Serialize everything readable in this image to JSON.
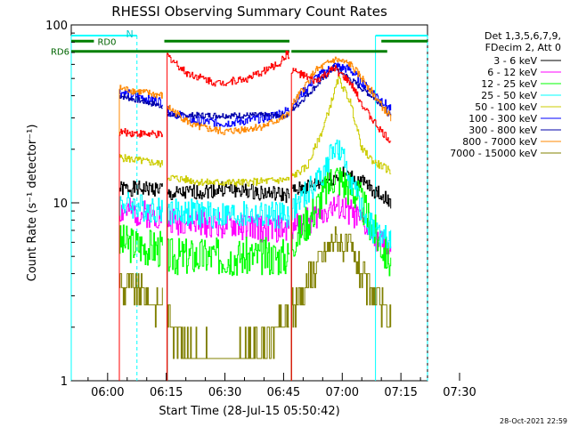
{
  "chart_data": {
    "type": "line",
    "title": "RHESSI Observing Summary Count Rates",
    "xlabel": "Start Time (28-Jul-15 05:50:42)",
    "ylabel": "Count Rate (s⁻¹ detector⁻¹)",
    "ylim": [
      1,
      100
    ],
    "yscale": "log",
    "xlim_minutes": [
      -9.3,
      81.8
    ],
    "x_ticks": [
      {
        "label": "06:00",
        "value": 0
      },
      {
        "label": "06:15",
        "value": 15
      },
      {
        "label": "06:30",
        "value": 30
      },
      {
        "label": "06:45",
        "value": 45
      },
      {
        "label": "07:00",
        "value": 60
      },
      {
        "label": "07:15",
        "value": 75
      },
      {
        "label": "07:30",
        "value": 90
      }
    ],
    "y_ticks": [
      {
        "label": "100",
        "value": 100
      },
      {
        "label": "10",
        "value": 10
      },
      {
        "label": "1",
        "value": 1
      }
    ],
    "legend_header": [
      "Det 1,3,5,6,7,9,",
      "FDecim 2, Att 0"
    ],
    "footer_stamp": "28-Oct-2021 22:59",
    "data_start_min": 3,
    "data_end_min": 72.5,
    "data_gaps": [
      [
        14,
        15
      ],
      [
        46.5,
        47
      ]
    ],
    "annotations": {
      "night_label": "N",
      "rd0_label": "RD0",
      "rd6_label": "RD6",
      "night_bars": [
        [
          -9.3,
          7.5
        ],
        [
          68.5,
          81.8
        ]
      ],
      "night_lines": [
        -9.3,
        7.5,
        68.5,
        81.8
      ],
      "rd0_value": 81,
      "rd0_bars": [
        [
          -9.3,
          -3.5
        ],
        [
          14.5,
          46.5
        ],
        [
          70,
          81.8
        ]
      ],
      "rd6_value": 71,
      "rd6_bars": [
        [
          -9.3,
          46.5
        ],
        [
          47,
          71.5
        ]
      ]
    },
    "series": [
      {
        "name": "3 - 6 keV",
        "color": "#000000",
        "noise": 0.1,
        "seed": 1,
        "points": [
          [
            3,
            12
          ],
          [
            14,
            12
          ],
          [
            15,
            11
          ],
          [
            30,
            12
          ],
          [
            46,
            11
          ],
          [
            47,
            11.5
          ],
          [
            55,
            13
          ],
          [
            60,
            14.5
          ],
          [
            65,
            13
          ],
          [
            70,
            11
          ],
          [
            72.5,
            10
          ]
        ]
      },
      {
        "name": "6 - 12 keV",
        "color": "#ff00ff",
        "noise": 0.18,
        "seed": 2,
        "points": [
          [
            3,
            9
          ],
          [
            14,
            8.5
          ],
          [
            15,
            8
          ],
          [
            30,
            7.5
          ],
          [
            46,
            7
          ],
          [
            47,
            7.5
          ],
          [
            52,
            8
          ],
          [
            57,
            9.5
          ],
          [
            62,
            9
          ],
          [
            67,
            7
          ],
          [
            70,
            6
          ],
          [
            72.5,
            5.5
          ]
        ]
      },
      {
        "name": "12 - 25 keV",
        "color": "#00ff00",
        "noise": 0.25,
        "seed": 3,
        "points": [
          [
            3,
            6
          ],
          [
            14,
            5.5
          ],
          [
            15,
            5
          ],
          [
            30,
            5
          ],
          [
            46,
            5
          ],
          [
            47,
            6
          ],
          [
            52,
            8.5
          ],
          [
            58,
            14.5
          ],
          [
            64,
            11
          ],
          [
            68,
            7
          ],
          [
            72.5,
            4.5
          ]
        ]
      },
      {
        "name": "25 - 50 keV",
        "color": "#00ffff",
        "noise": 0.18,
        "seed": 4,
        "points": [
          [
            3,
            10
          ],
          [
            14,
            9
          ],
          [
            15,
            9
          ],
          [
            30,
            8.5
          ],
          [
            46,
            8.5
          ],
          [
            47,
            9
          ],
          [
            52,
            12
          ],
          [
            56,
            16
          ],
          [
            58,
            21
          ],
          [
            61,
            16
          ],
          [
            65,
            9
          ],
          [
            68,
            7
          ],
          [
            72.5,
            6
          ]
        ]
      },
      {
        "name": "50 - 100 keV",
        "color": "#cccc00",
        "noise": 0.05,
        "seed": 5,
        "points": [
          [
            3,
            18
          ],
          [
            14,
            16.5
          ],
          [
            15,
            14
          ],
          [
            25,
            13
          ],
          [
            35,
            13
          ],
          [
            46,
            13.5
          ],
          [
            47,
            14
          ],
          [
            51,
            16
          ],
          [
            55,
            26
          ],
          [
            59,
            50
          ],
          [
            62,
            37
          ],
          [
            65,
            20
          ],
          [
            68,
            17
          ],
          [
            72.5,
            15
          ]
        ]
      },
      {
        "name": "100 - 300 keV",
        "color": "#0000ff",
        "noise": 0.06,
        "seed": 6,
        "points": [
          [
            3,
            42
          ],
          [
            14,
            37
          ],
          [
            15,
            33
          ],
          [
            22,
            29
          ],
          [
            30,
            28
          ],
          [
            40,
            30
          ],
          [
            46,
            33
          ],
          [
            47,
            35
          ],
          [
            53,
            50
          ],
          [
            58,
            59
          ],
          [
            62,
            56
          ],
          [
            66,
            45
          ],
          [
            70,
            38
          ],
          [
            72.5,
            33
          ]
        ]
      },
      {
        "name": "300 - 800 keV",
        "color": "#0000aa",
        "noise": 0.04,
        "seed": 7,
        "points": [
          [
            3,
            40
          ],
          [
            14,
            35
          ],
          [
            15,
            31
          ],
          [
            46,
            31
          ],
          [
            47,
            33
          ],
          [
            58,
            58
          ],
          [
            70,
            36
          ],
          [
            72.5,
            30
          ]
        ]
      },
      {
        "name": "800 - 7000 keV",
        "color": "#ff8800",
        "noise": 0.05,
        "seed": 8,
        "points": [
          [
            3,
            44
          ],
          [
            14,
            40
          ],
          [
            15,
            35
          ],
          [
            22,
            27
          ],
          [
            30,
            25
          ],
          [
            40,
            27
          ],
          [
            46,
            31
          ],
          [
            47,
            35
          ],
          [
            53,
            55
          ],
          [
            58,
            64
          ],
          [
            62,
            60
          ],
          [
            66,
            47
          ],
          [
            70,
            35
          ],
          [
            72.5,
            30
          ]
        ]
      },
      {
        "name": "7000 - 15000 keV",
        "color": "#808000",
        "noise": 0.2,
        "seed": 9,
        "points": [
          [
            3,
            3.5
          ],
          [
            14,
            2.7
          ],
          [
            15,
            2.3
          ],
          [
            20,
            1.6
          ],
          [
            30,
            1.3
          ],
          [
            40,
            1.6
          ],
          [
            46,
            2.2
          ],
          [
            47,
            2.5
          ],
          [
            52,
            4
          ],
          [
            58,
            6.3
          ],
          [
            62,
            5.5
          ],
          [
            66,
            3.5
          ],
          [
            70,
            2.5
          ],
          [
            72.5,
            2.3
          ]
        ]
      },
      {
        "name": "red-overlay",
        "color": "#ff0000",
        "noise": 0.05,
        "seed": 10,
        "unlisted": true,
        "points": [
          [
            3,
            25
          ],
          [
            14,
            24
          ],
          [
            15,
            68
          ],
          [
            20,
            54
          ],
          [
            28,
            47
          ],
          [
            36,
            50
          ],
          [
            44,
            61
          ],
          [
            46,
            70
          ],
          [
            47,
            56
          ],
          [
            53,
            48
          ],
          [
            58,
            57
          ],
          [
            62,
            47
          ],
          [
            66,
            33
          ],
          [
            70,
            25
          ],
          [
            72.5,
            22
          ]
        ]
      }
    ]
  }
}
